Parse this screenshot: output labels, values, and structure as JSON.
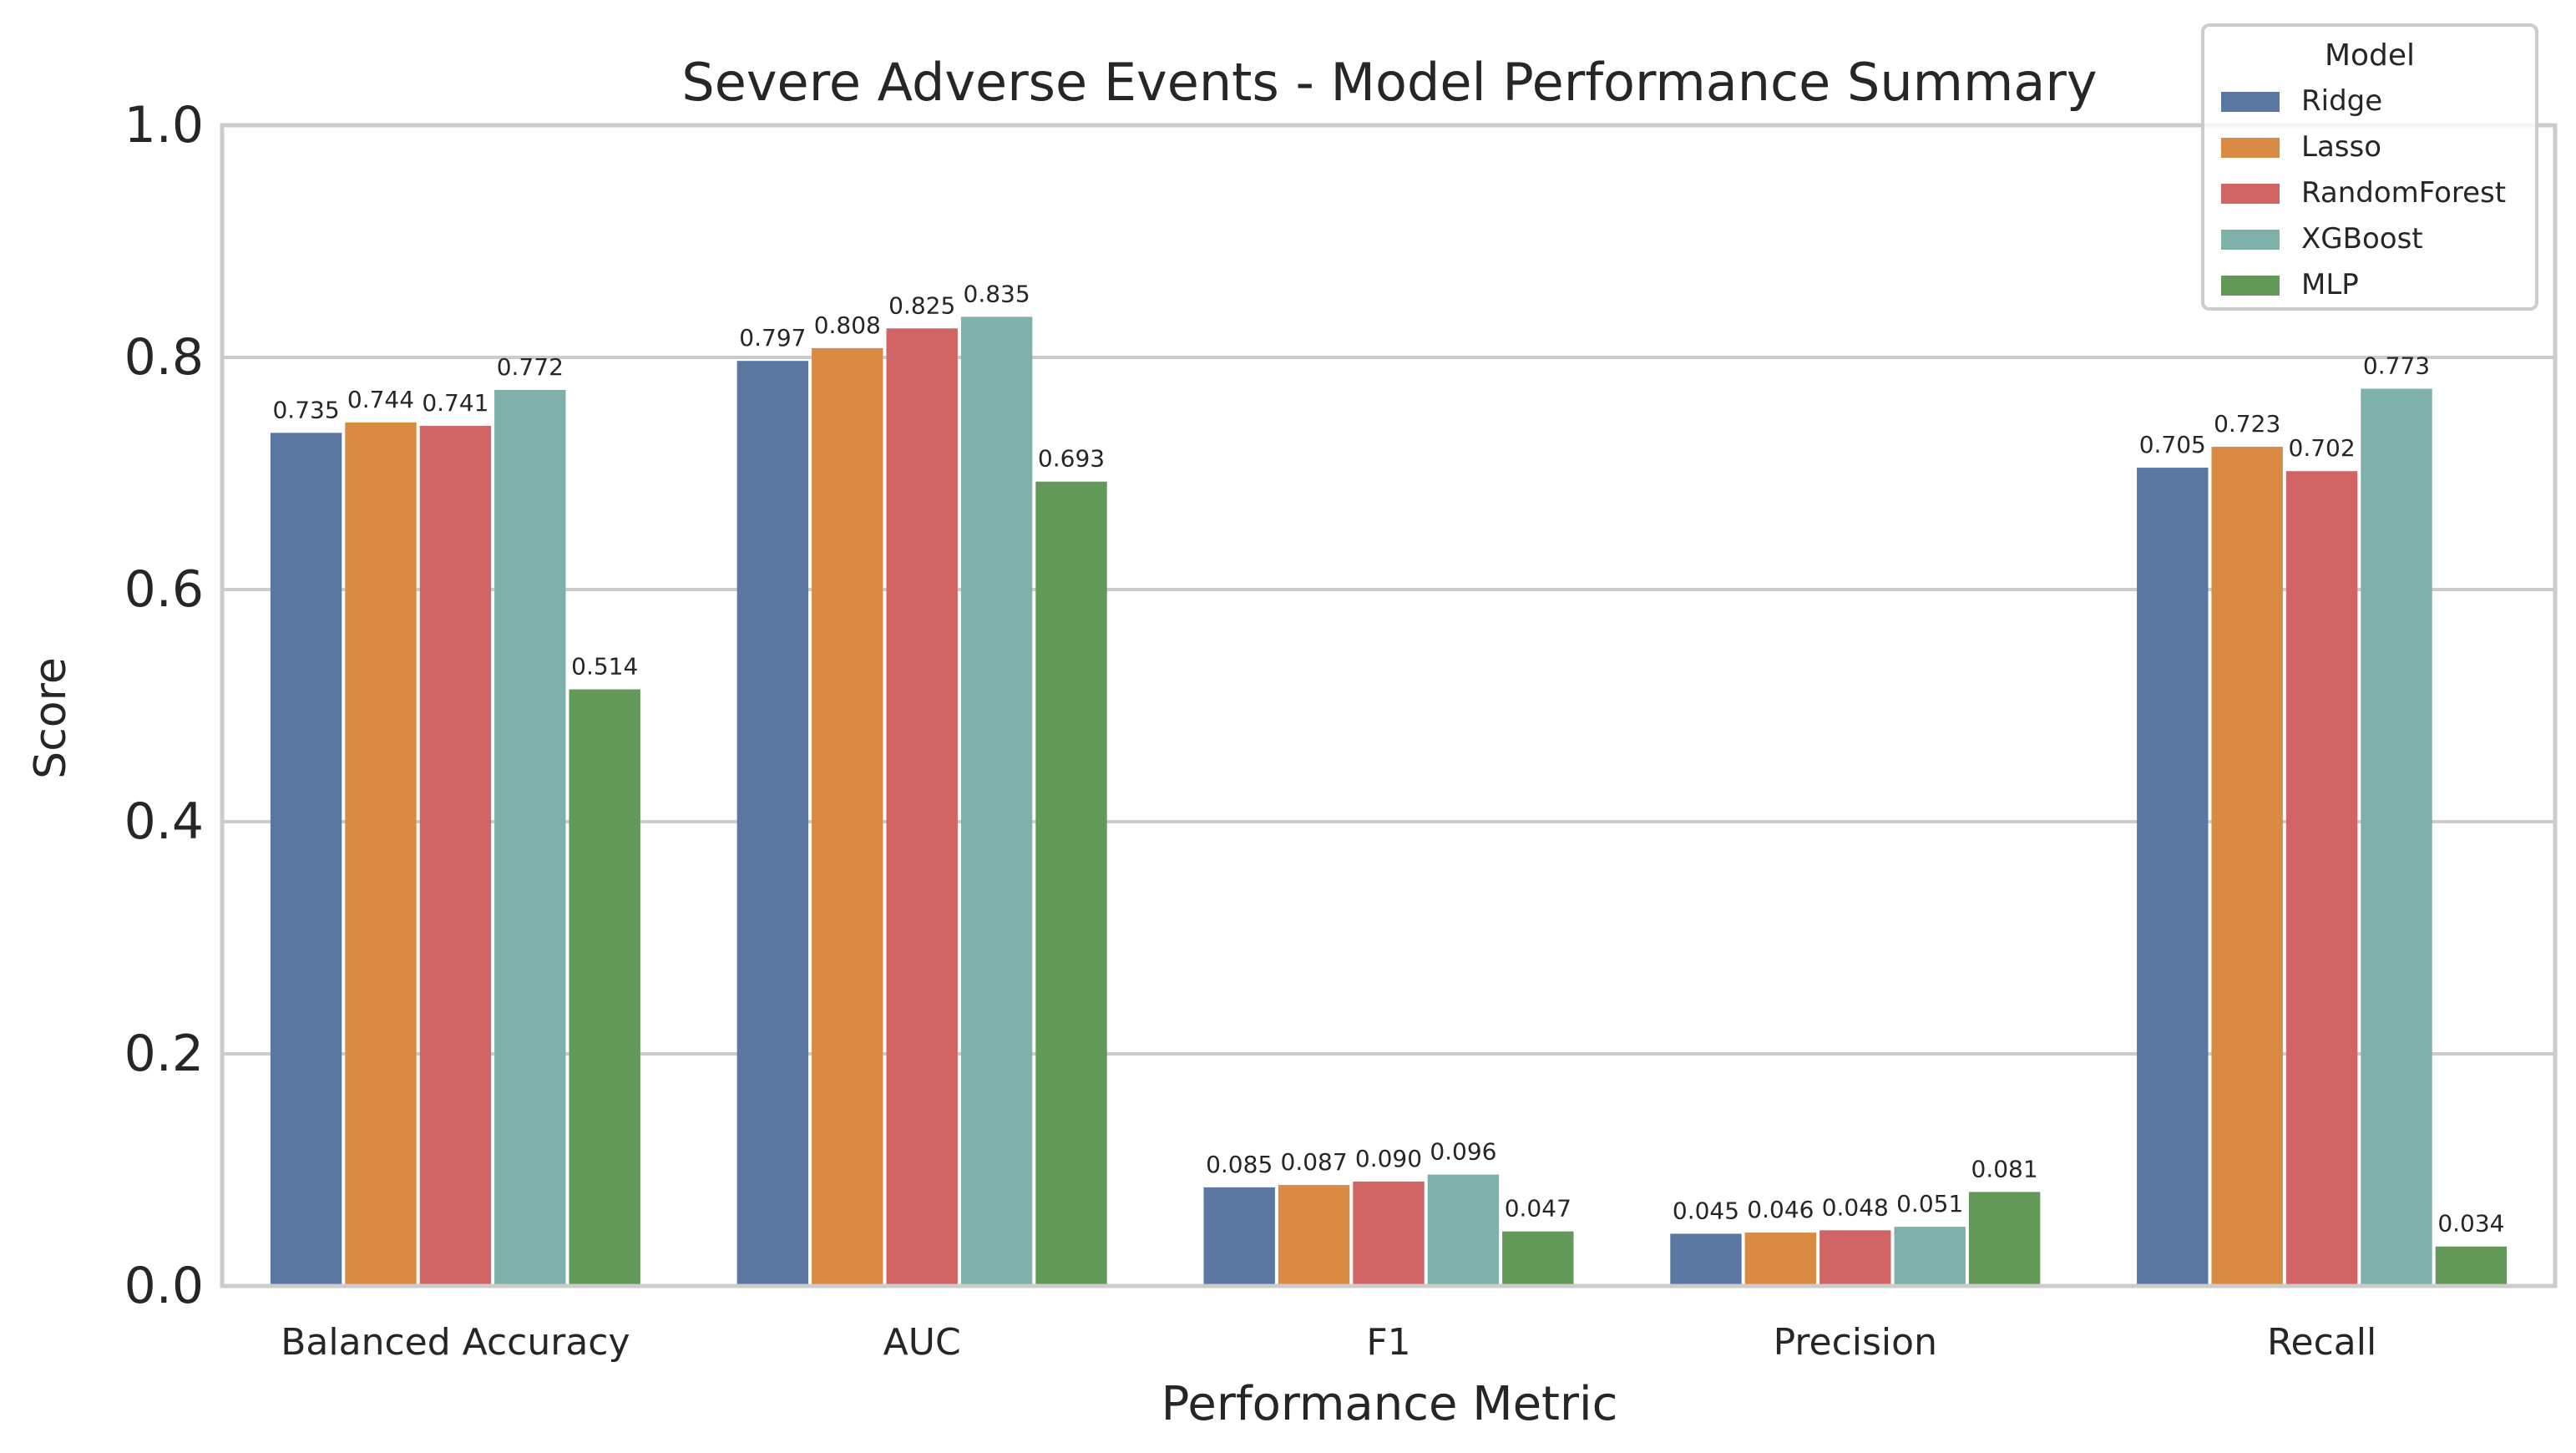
{
  "chart_data": {
    "type": "bar",
    "title": "Severe Adverse Events - Model Performance Summary",
    "xlabel": "Performance Metric",
    "ylabel": "Score",
    "ylim": [
      0,
      1.0
    ],
    "yticks": [
      "0.0",
      "0.2",
      "0.4",
      "0.6",
      "0.8",
      "1.0"
    ],
    "grid": "horizontal",
    "legend_title": "Model",
    "legend_position": "top-right",
    "categories": [
      "Balanced Accuracy",
      "AUC",
      "F1",
      "Precision",
      "Recall"
    ],
    "series": [
      {
        "name": "Ridge",
        "color": "#5977a0",
        "values": [
          0.735,
          0.797,
          0.085,
          0.045,
          0.705
        ],
        "labels": [
          "0.735",
          "0.797",
          "0.085",
          "0.045",
          "0.705"
        ]
      },
      {
        "name": "Lasso",
        "color": "#d98b43",
        "values": [
          0.744,
          0.808,
          0.087,
          0.046,
          0.723
        ],
        "labels": [
          "0.744",
          "0.808",
          "0.087",
          "0.046",
          "0.723"
        ]
      },
      {
        "name": "RandomForest",
        "color": "#d16565",
        "values": [
          0.741,
          0.825,
          0.09,
          0.048,
          0.702
        ],
        "labels": [
          "0.741",
          "0.825",
          "0.090",
          "0.048",
          "0.702"
        ]
      },
      {
        "name": "XGBoost",
        "color": "#7fb0aa",
        "values": [
          0.772,
          0.835,
          0.096,
          0.051,
          0.773
        ],
        "labels": [
          "0.772",
          "0.835",
          "0.096",
          "0.051",
          "0.773"
        ]
      },
      {
        "name": "MLP",
        "color": "#629858",
        "values": [
          0.514,
          0.693,
          0.047,
          0.081,
          0.034
        ],
        "labels": [
          "0.514",
          "0.693",
          "0.047",
          "0.081",
          "0.034"
        ]
      }
    ]
  }
}
